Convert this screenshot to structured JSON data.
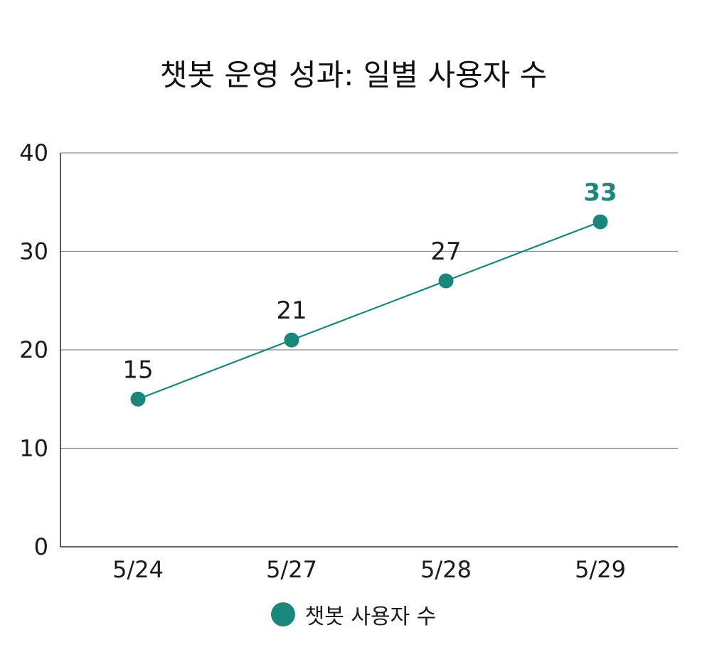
{
  "chart_data": {
    "type": "line",
    "title": "챗봇 운영 성과: 일별 사용자 수",
    "categories": [
      "5/24",
      "5/27",
      "5/28",
      "5/29"
    ],
    "series": [
      {
        "name": "챗봇 사용자 수",
        "values": [
          15,
          21,
          27,
          33
        ],
        "color": "#19877a"
      }
    ],
    "ylim": [
      0,
      40
    ],
    "yticks": [
      0,
      10,
      20,
      30,
      40
    ],
    "grid": true,
    "legend": "bottom",
    "highlight_last": true
  }
}
